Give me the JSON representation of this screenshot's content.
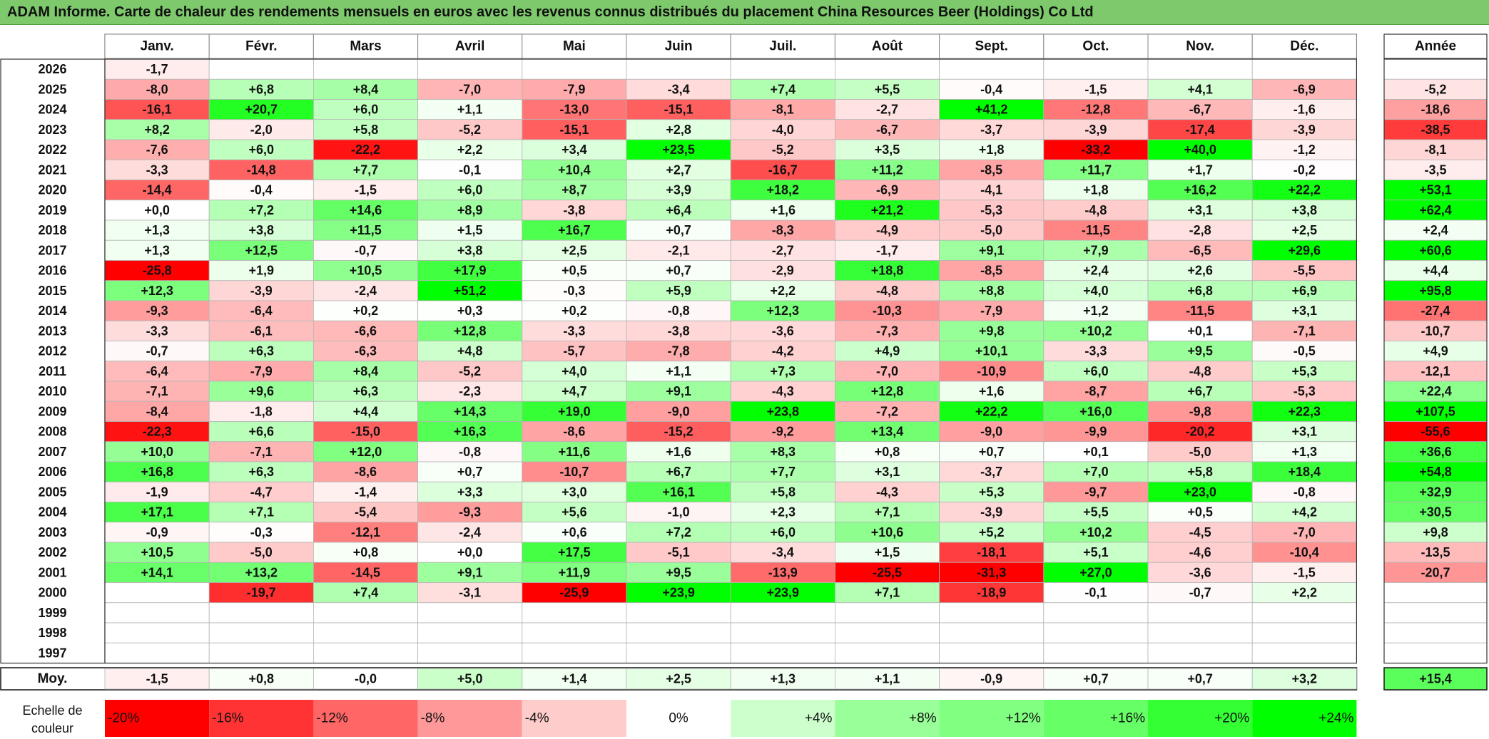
{
  "title": "ADAM Informe. Carte de chaleur des rendements mensuels en euros avec les revenus connus distribués du placement China Resources Beer (Holdings) Co Ltd",
  "chart_data": {
    "type": "heatmap",
    "title": "ADAM Informe. Carte de chaleur des rendements mensuels en euros avec les revenus connus distribués du placement China Resources Beer (Holdings) Co Ltd",
    "months": [
      "Janv.",
      "Févr.",
      "Mars",
      "Avril",
      "Mai",
      "Juin",
      "Juil.",
      "Août",
      "Sept.",
      "Oct.",
      "Nov.",
      "Déc."
    ],
    "year_header": "Année",
    "rows": [
      {
        "year": "2026",
        "values": [
          "-1,7",
          "",
          "",
          "",
          "",
          "",
          "",
          "",
          "",
          "",
          "",
          ""
        ],
        "annual": ""
      },
      {
        "year": "2025",
        "values": [
          "-8,0",
          "+6,8",
          "+8,4",
          "-7,0",
          "-7,9",
          "-3,4",
          "+7,4",
          "+5,5",
          "-0,4",
          "-1,5",
          "+4,1",
          "-6,9"
        ],
        "annual": "-5,2"
      },
      {
        "year": "2024",
        "values": [
          "-16,1",
          "+20,7",
          "+6,0",
          "+1,1",
          "-13,0",
          "-15,1",
          "-8,1",
          "-2,7",
          "+41,2",
          "-12,8",
          "-6,7",
          "-1,6"
        ],
        "annual": "-18,6"
      },
      {
        "year": "2023",
        "values": [
          "+8,2",
          "-2,0",
          "+5,8",
          "-5,2",
          "-15,1",
          "+2,8",
          "-4,0",
          "-6,7",
          "-3,7",
          "-3,9",
          "-17,4",
          "-3,9"
        ],
        "annual": "-38,5"
      },
      {
        "year": "2022",
        "values": [
          "-7,6",
          "+6,0",
          "-22,2",
          "+2,2",
          "+3,4",
          "+23,5",
          "-5,2",
          "+3,5",
          "+1,8",
          "-33,2",
          "+40,0",
          "-1,2"
        ],
        "annual": "-8,1"
      },
      {
        "year": "2021",
        "values": [
          "-3,3",
          "-14,8",
          "+7,7",
          "-0,1",
          "+10,4",
          "+2,7",
          "-16,7",
          "+11,2",
          "-8,5",
          "+11,7",
          "+1,7",
          "-0,2"
        ],
        "annual": "-3,5"
      },
      {
        "year": "2020",
        "values": [
          "-14,4",
          "-0,4",
          "-1,5",
          "+6,0",
          "+8,7",
          "+3,9",
          "+18,2",
          "-6,9",
          "-4,1",
          "+1,8",
          "+16,2",
          "+22,2"
        ],
        "annual": "+53,1"
      },
      {
        "year": "2019",
        "values": [
          "+0,0",
          "+7,2",
          "+14,6",
          "+8,9",
          "-3,8",
          "+6,4",
          "+1,6",
          "+21,2",
          "-5,3",
          "-4,8",
          "+3,1",
          "+3,8"
        ],
        "annual": "+62,4"
      },
      {
        "year": "2018",
        "values": [
          "+1,3",
          "+3,8",
          "+11,5",
          "+1,5",
          "+16,7",
          "+0,7",
          "-8,3",
          "-4,9",
          "-5,0",
          "-11,5",
          "-2,8",
          "+2,5"
        ],
        "annual": "+2,4"
      },
      {
        "year": "2017",
        "values": [
          "+1,3",
          "+12,5",
          "-0,7",
          "+3,8",
          "+2,5",
          "-2,1",
          "-2,7",
          "-1,7",
          "+9,1",
          "+7,9",
          "-6,5",
          "+29,6"
        ],
        "annual": "+60,6"
      },
      {
        "year": "2016",
        "values": [
          "-25,8",
          "+1,9",
          "+10,5",
          "+17,9",
          "+0,5",
          "+0,7",
          "-2,9",
          "+18,8",
          "-8,5",
          "+2,4",
          "+2,6",
          "-5,5"
        ],
        "annual": "+4,4"
      },
      {
        "year": "2015",
        "values": [
          "+12,3",
          "-3,9",
          "-2,4",
          "+51,2",
          "-0,3",
          "+5,9",
          "+2,2",
          "-4,8",
          "+8,8",
          "+4,0",
          "+6,8",
          "+6,9"
        ],
        "annual": "+95,8"
      },
      {
        "year": "2014",
        "values": [
          "-9,3",
          "-6,4",
          "+0,2",
          "+0,3",
          "+0,2",
          "-0,8",
          "+12,3",
          "-10,3",
          "-7,9",
          "+1,2",
          "-11,5",
          "+3,1"
        ],
        "annual": "-27,4"
      },
      {
        "year": "2013",
        "values": [
          "-3,3",
          "-6,1",
          "-6,6",
          "+12,8",
          "-3,3",
          "-3,8",
          "-3,6",
          "-7,3",
          "+9,8",
          "+10,2",
          "+0,1",
          "-7,1"
        ],
        "annual": "-10,7"
      },
      {
        "year": "2012",
        "values": [
          "-0,7",
          "+6,3",
          "-6,3",
          "+4,8",
          "-5,7",
          "-7,8",
          "-4,2",
          "+4,9",
          "+10,1",
          "-3,3",
          "+9,5",
          "-0,5"
        ],
        "annual": "+4,9"
      },
      {
        "year": "2011",
        "values": [
          "-6,4",
          "-7,9",
          "+8,4",
          "-5,2",
          "+4,0",
          "+1,1",
          "+7,3",
          "-7,0",
          "-10,9",
          "+6,0",
          "-4,8",
          "+5,3"
        ],
        "annual": "-12,1"
      },
      {
        "year": "2010",
        "values": [
          "-7,1",
          "+9,6",
          "+6,3",
          "-2,3",
          "+4,7",
          "+9,1",
          "-4,3",
          "+12,8",
          "+1,6",
          "-8,7",
          "+6,7",
          "-5,3"
        ],
        "annual": "+22,4"
      },
      {
        "year": "2009",
        "values": [
          "-8,4",
          "-1,8",
          "+4,4",
          "+14,3",
          "+19,0",
          "-9,0",
          "+23,8",
          "-7,2",
          "+22,2",
          "+16,0",
          "-9,8",
          "+22,3"
        ],
        "annual": "+107,5"
      },
      {
        "year": "2008",
        "values": [
          "-22,3",
          "+6,6",
          "-15,0",
          "+16,3",
          "-8,6",
          "-15,2",
          "-9,2",
          "+13,4",
          "-9,0",
          "-9,9",
          "-20,2",
          "+3,1"
        ],
        "annual": "-55,6"
      },
      {
        "year": "2007",
        "values": [
          "+10,0",
          "-7,1",
          "+12,0",
          "-0,8",
          "+11,6",
          "+1,6",
          "+8,3",
          "+0,8",
          "+0,7",
          "+0,1",
          "-5,0",
          "+1,3"
        ],
        "annual": "+36,6"
      },
      {
        "year": "2006",
        "values": [
          "+16,8",
          "+6,3",
          "-8,6",
          "+0,7",
          "-10,7",
          "+6,7",
          "+7,7",
          "+3,1",
          "-3,7",
          "+7,0",
          "+5,8",
          "+18,4"
        ],
        "annual": "+54,8"
      },
      {
        "year": "2005",
        "values": [
          "-1,9",
          "-4,7",
          "-1,4",
          "+3,3",
          "+3,0",
          "+16,1",
          "+5,8",
          "-4,3",
          "+5,3",
          "-9,7",
          "+23,0",
          "-0,8"
        ],
        "annual": "+32,9"
      },
      {
        "year": "2004",
        "values": [
          "+17,1",
          "+7,1",
          "-5,4",
          "-9,3",
          "+5,6",
          "-1,0",
          "+2,3",
          "+7,1",
          "-3,9",
          "+5,5",
          "+0,5",
          "+4,2"
        ],
        "annual": "+30,5"
      },
      {
        "year": "2003",
        "values": [
          "-0,9",
          "-0,3",
          "-12,1",
          "-2,4",
          "+0,6",
          "+7,2",
          "+6,0",
          "+10,6",
          "+5,2",
          "+10,2",
          "-4,5",
          "-7,0"
        ],
        "annual": "+9,8"
      },
      {
        "year": "2002",
        "values": [
          "+10,5",
          "-5,0",
          "+0,8",
          "+0,0",
          "+17,5",
          "-5,1",
          "-3,4",
          "+1,5",
          "-18,1",
          "+5,1",
          "-4,6",
          "-10,4"
        ],
        "annual": "-13,5"
      },
      {
        "year": "2001",
        "values": [
          "+14,1",
          "+13,2",
          "-14,5",
          "+9,1",
          "+11,9",
          "+9,5",
          "-13,9",
          "-25,5",
          "-31,3",
          "+27,0",
          "-3,6",
          "-1,5"
        ],
        "annual": "-20,7"
      },
      {
        "year": "2000",
        "values": [
          "",
          "-19,7",
          "+7,4",
          "-3,1",
          "-25,9",
          "+23,9",
          "+23,9",
          "+7,1",
          "-18,9",
          "-0,1",
          "-0,7",
          "+2,2"
        ],
        "annual": ""
      },
      {
        "year": "1999",
        "values": [
          "",
          "",
          "",
          "",
          "",
          "",
          "",
          "",
          "",
          "",
          "",
          ""
        ],
        "annual": ""
      },
      {
        "year": "1998",
        "values": [
          "",
          "",
          "",
          "",
          "",
          "",
          "",
          "",
          "",
          "",
          "",
          ""
        ],
        "annual": ""
      },
      {
        "year": "1997",
        "values": [
          "",
          "",
          "",
          "",
          "",
          "",
          "",
          "",
          "",
          "",
          "",
          ""
        ],
        "annual": ""
      }
    ],
    "average": {
      "label": "Moy.",
      "values": [
        "-1,5",
        "+0,8",
        "-0,0",
        "+5,0",
        "+1,4",
        "+2,5",
        "+1,3",
        "+1,1",
        "-0,9",
        "+0,7",
        "+0,7",
        "+3,2"
      ],
      "annual": "+15,4"
    },
    "color_scale": {
      "label_line1": "Echelle de",
      "label_line2": "couleur",
      "stops": [
        {
          "label": "-20%",
          "color": "#ff0000"
        },
        {
          "label": "-16%",
          "color": "#ff3333"
        },
        {
          "label": "-12%",
          "color": "#ff6666"
        },
        {
          "label": "-8%",
          "color": "#ff9999"
        },
        {
          "label": "-4%",
          "color": "#ffcccc"
        },
        {
          "label": "0%",
          "color": "#ffffff"
        },
        {
          "label": "+4%",
          "color": "#ccffcc"
        },
        {
          "label": "+8%",
          "color": "#99ff99"
        },
        {
          "label": "+12%",
          "color": "#80ff80"
        },
        {
          "label": "+16%",
          "color": "#66ff66"
        },
        {
          "label": "+20%",
          "color": "#33ff33"
        },
        {
          "label": "+24%",
          "color": "#00ff00"
        }
      ]
    }
  }
}
